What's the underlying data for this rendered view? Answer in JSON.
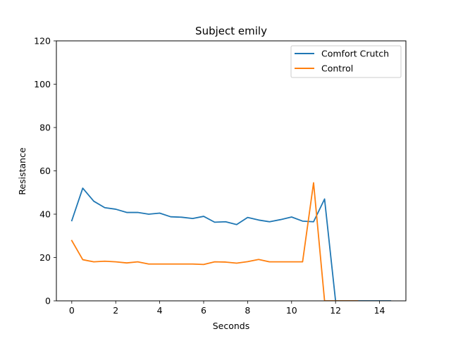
{
  "chart_data": {
    "type": "line",
    "title": "Subject emily",
    "xlabel": "Seconds",
    "ylabel": "Resistance",
    "xlim": [
      -0.7,
      15.2
    ],
    "ylim": [
      0,
      120
    ],
    "xticks": [
      0,
      2,
      4,
      6,
      8,
      10,
      12,
      14
    ],
    "yticks": [
      0,
      20,
      40,
      60,
      80,
      100,
      120
    ],
    "grid": false,
    "legend_position": "top-right",
    "series": [
      {
        "name": "Comfort Crutch",
        "color": "#1f77b4",
        "x": [
          0,
          0.5,
          1,
          1.5,
          2,
          2.5,
          3,
          3.5,
          4,
          4.5,
          5,
          5.5,
          6,
          6.5,
          7,
          7.5,
          8,
          8.5,
          9,
          9.5,
          10,
          10.5,
          11,
          11.5,
          12,
          12.5,
          13,
          13.5,
          14,
          14.5
        ],
        "y": [
          37,
          52,
          46,
          43,
          42.3,
          40.8,
          40.8,
          40,
          40.5,
          38.8,
          38.6,
          38,
          39,
          36.3,
          36.5,
          35.2,
          38.5,
          37.3,
          36.5,
          37.5,
          38.7,
          36.8,
          36.5,
          47,
          0,
          0,
          0,
          0,
          0,
          0
        ]
      },
      {
        "name": "Control",
        "color": "#ff7f0e",
        "x": [
          0,
          0.5,
          1,
          1.5,
          2,
          2.5,
          3,
          3.5,
          4,
          4.5,
          5,
          5.5,
          6,
          6.5,
          7,
          7.5,
          8,
          8.5,
          9,
          9.5,
          10,
          10.5,
          11,
          11.5,
          12,
          12.5,
          13
        ],
        "y": [
          27.8,
          19,
          18,
          18.3,
          18,
          17.5,
          18,
          17,
          17,
          17,
          17,
          17,
          16.8,
          18,
          17.9,
          17.4,
          18.1,
          19.1,
          18,
          18,
          18,
          18,
          54.5,
          0,
          0,
          0,
          0
        ]
      }
    ]
  }
}
